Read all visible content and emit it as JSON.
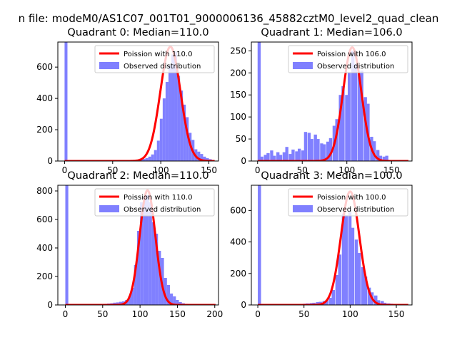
{
  "suptitle": "n file: modeM0/AS1C07_001T01_9000006136_45882cztM0_level2_quad_clean",
  "colors": {
    "curve": "#ff0000",
    "bars": "#8080ff",
    "frame": "#000000"
  },
  "chart_data": [
    {
      "type": "bar",
      "title": "Quadrant 0: Median=110.0",
      "xlim": [
        -7,
        160
      ],
      "ylim": [
        0,
        760
      ],
      "xticks": [
        0,
        50,
        100,
        150
      ],
      "yticks": [
        0,
        200,
        400,
        600
      ],
      "bin_width": 3,
      "legend": [
        "Poission with 110.0",
        "Observed distribution"
      ],
      "legend_position": "top-right",
      "poisson_mean": 110.0,
      "poisson_peak": 730,
      "bins": [
        [
          0,
          760
        ],
        [
          72,
          5
        ],
        [
          75,
          8
        ],
        [
          78,
          10
        ],
        [
          81,
          13
        ],
        [
          84,
          18
        ],
        [
          87,
          28
        ],
        [
          90,
          42
        ],
        [
          93,
          70
        ],
        [
          96,
          130
        ],
        [
          99,
          270
        ],
        [
          102,
          400
        ],
        [
          105,
          505
        ],
        [
          108,
          610
        ],
        [
          111,
          680
        ],
        [
          114,
          700
        ],
        [
          117,
          545
        ],
        [
          120,
          450
        ],
        [
          123,
          360
        ],
        [
          126,
          280
        ],
        [
          129,
          180
        ],
        [
          132,
          135
        ],
        [
          135,
          75
        ],
        [
          138,
          60
        ],
        [
          141,
          45
        ],
        [
          144,
          28
        ],
        [
          147,
          18
        ],
        [
          150,
          12
        ]
      ]
    },
    {
      "type": "bar",
      "title": "Quadrant 1: Median=106.0",
      "xlim": [
        -7,
        173
      ],
      "ylim": [
        0,
        270
      ],
      "xticks": [
        0,
        50,
        100,
        150
      ],
      "yticks": [
        0,
        50,
        100,
        150,
        200,
        250
      ],
      "bin_width": 3.5,
      "legend": [
        "Poission with 106.0",
        "Observed distribution"
      ],
      "legend_position": "top-right",
      "poisson_mean": 106.0,
      "poisson_peak": 258,
      "bins": [
        [
          0,
          270
        ],
        [
          3,
          10
        ],
        [
          7,
          14
        ],
        [
          10,
          18
        ],
        [
          14,
          24
        ],
        [
          17,
          12
        ],
        [
          21,
          20
        ],
        [
          24,
          14
        ],
        [
          28,
          20
        ],
        [
          31,
          32
        ],
        [
          35,
          16
        ],
        [
          38,
          26
        ],
        [
          42,
          22
        ],
        [
          45,
          28
        ],
        [
          49,
          24
        ],
        [
          52,
          66
        ],
        [
          56,
          64
        ],
        [
          59,
          50
        ],
        [
          63,
          60
        ],
        [
          66,
          50
        ],
        [
          70,
          40
        ],
        [
          73,
          38
        ],
        [
          77,
          44
        ],
        [
          80,
          52
        ],
        [
          84,
          80
        ],
        [
          87,
          95
        ],
        [
          91,
          150
        ],
        [
          94,
          170
        ],
        [
          98,
          150
        ],
        [
          101,
          200
        ],
        [
          105,
          250
        ],
        [
          108,
          220
        ],
        [
          112,
          200
        ],
        [
          115,
          205
        ],
        [
          119,
          145
        ],
        [
          122,
          130
        ],
        [
          126,
          55
        ],
        [
          129,
          45
        ],
        [
          133,
          25
        ],
        [
          136,
          12
        ],
        [
          140,
          10
        ],
        [
          143,
          12
        ]
      ]
    },
    {
      "type": "bar",
      "title": "Quadrant 2: Median=110.0",
      "xlim": [
        -10,
        205
      ],
      "ylim": [
        0,
        840
      ],
      "xticks": [
        0,
        50,
        100,
        150,
        200
      ],
      "yticks": [
        0,
        200,
        400,
        600,
        800
      ],
      "bin_width": 4,
      "legend": [
        "Poission with 110.0",
        "Observed distribution"
      ],
      "legend_position": "top-right",
      "poisson_mean": 110.0,
      "poisson_peak": 805,
      "bins": [
        [
          0,
          840
        ],
        [
          48,
          5
        ],
        [
          52,
          8
        ],
        [
          56,
          10
        ],
        [
          60,
          12
        ],
        [
          64,
          16
        ],
        [
          68,
          18
        ],
        [
          72,
          22
        ],
        [
          76,
          25
        ],
        [
          80,
          35
        ],
        [
          84,
          60
        ],
        [
          88,
          120
        ],
        [
          92,
          280
        ],
        [
          96,
          520
        ],
        [
          100,
          720
        ],
        [
          104,
          760
        ],
        [
          108,
          770
        ],
        [
          112,
          720
        ],
        [
          116,
          580
        ],
        [
          120,
          500
        ],
        [
          124,
          380
        ],
        [
          128,
          330
        ],
        [
          132,
          190
        ],
        [
          136,
          140
        ],
        [
          140,
          80
        ],
        [
          144,
          60
        ],
        [
          148,
          35
        ],
        [
          152,
          20
        ],
        [
          156,
          12
        ],
        [
          160,
          8
        ],
        [
          164,
          5
        ]
      ]
    },
    {
      "type": "bar",
      "title": "Quadrant 3: Median=100.0",
      "xlim": [
        -7,
        167
      ],
      "ylim": [
        0,
        760
      ],
      "xticks": [
        0,
        50,
        100,
        150
      ],
      "yticks": [
        0,
        200,
        400,
        600
      ],
      "bin_width": 3.5,
      "legend": [
        "Poission with 100.0",
        "Observed distribution"
      ],
      "legend_position": "top-right",
      "poisson_mean": 100.0,
      "poisson_peak": 720,
      "bins": [
        [
          0,
          760
        ],
        [
          45,
          5
        ],
        [
          49,
          8
        ],
        [
          52,
          10
        ],
        [
          56,
          12
        ],
        [
          59,
          14
        ],
        [
          63,
          18
        ],
        [
          66,
          20
        ],
        [
          70,
          25
        ],
        [
          73,
          30
        ],
        [
          77,
          45
        ],
        [
          80,
          95
        ],
        [
          84,
          190
        ],
        [
          87,
          320
        ],
        [
          91,
          580
        ],
        [
          94,
          570
        ],
        [
          98,
          590
        ],
        [
          101,
          490
        ],
        [
          105,
          415
        ],
        [
          108,
          330
        ],
        [
          112,
          240
        ],
        [
          115,
          180
        ],
        [
          119,
          110
        ],
        [
          122,
          80
        ],
        [
          126,
          60
        ],
        [
          129,
          30
        ],
        [
          133,
          25
        ],
        [
          136,
          14
        ],
        [
          140,
          10
        ],
        [
          143,
          8
        ],
        [
          147,
          6
        ],
        [
          150,
          4
        ]
      ]
    }
  ]
}
